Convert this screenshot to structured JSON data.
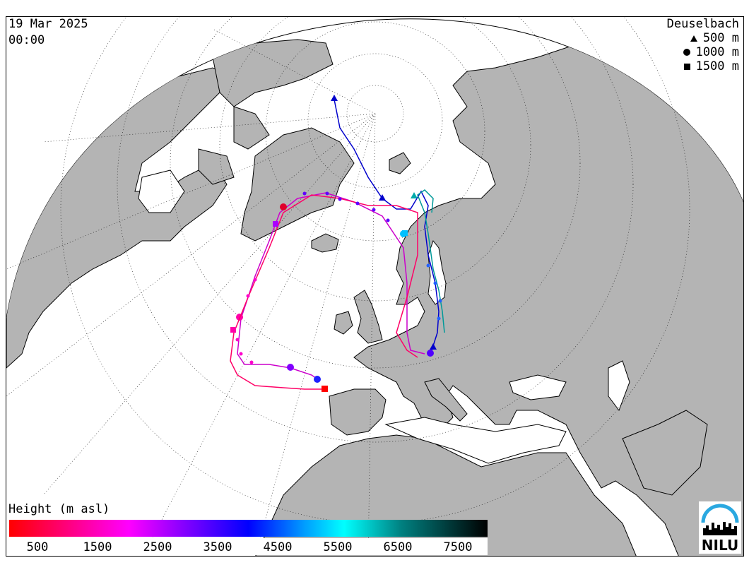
{
  "header": {
    "date": "19 Mar 2025",
    "time": "00:00"
  },
  "legend": {
    "station": "Deuselbach",
    "items": [
      {
        "symbol": "triangle",
        "label": "500 m"
      },
      {
        "symbol": "circle",
        "label": "1000 m"
      },
      {
        "symbol": "square",
        "label": "1500 m"
      }
    ]
  },
  "colorbar": {
    "title": "Height (m asl)",
    "ticks": [
      "500",
      "1500",
      "2500",
      "3500",
      "4500",
      "5500",
      "6500",
      "7500"
    ],
    "colors": [
      "#ff0000",
      "#ff00ff",
      "#8000ff",
      "#0000ff",
      "#00a0ff",
      "#00ffff",
      "#008080",
      "#000000"
    ]
  },
  "logo": {
    "text": "NILU",
    "accent_color": "#2aa8e0"
  },
  "map": {
    "land_color": "#b4b4b4",
    "ocean_color": "#ffffff",
    "trajectory_colors": {
      "500m": "#0000cc",
      "1000m": "#8000ff",
      "1500m": "#ff0000"
    }
  }
}
